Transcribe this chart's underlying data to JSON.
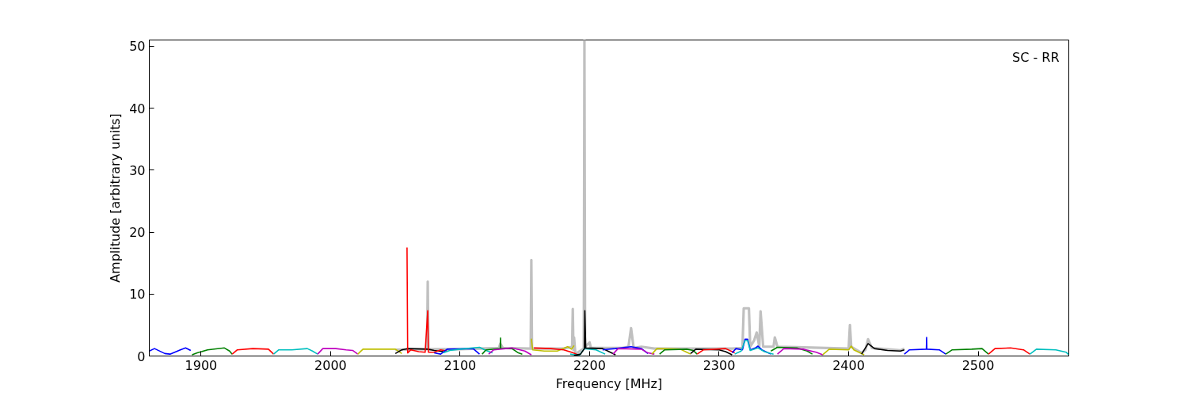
{
  "chart_data": {
    "type": "line",
    "xlabel": "Frequency [MHz]",
    "ylabel": "Amplitude [arbitrary units]",
    "annotations": [
      "SC - RR"
    ],
    "xlim": [
      1860,
      2570
    ],
    "ylim": [
      0,
      51
    ],
    "xticks": [
      1900,
      2000,
      2100,
      2200,
      2300,
      2400,
      2500
    ],
    "yticks": [
      0,
      10,
      20,
      30,
      40,
      50
    ],
    "grid": false,
    "line_style": "solid",
    "series": [
      {
        "color": "#c0c0c0",
        "x": [
          2050,
          2074.5,
          2075,
          2075.5,
          2100,
          2130,
          2131,
          2133,
          2154.5,
          2155,
          2155.5,
          2180,
          2186.5,
          2187,
          2187.5,
          2188,
          2189,
          2195.5,
          2196,
          2196.5,
          2200,
          2201,
          2225,
          2230,
          2232,
          2234,
          2240,
          2250,
          2310,
          2318,
          2319,
          2323,
          2324,
          2327,
          2329,
          2331,
          2332,
          2334,
          2342,
          2343,
          2345,
          2400,
          2401,
          2402,
          2410,
          2413,
          2415,
          2418,
          2440,
          2443
        ],
        "values": [
          1.0,
          1.1,
          12.0,
          1.1,
          1.1,
          1.3,
          2.0,
          1.3,
          1.2,
          15.5,
          1.2,
          1.2,
          1.5,
          7.6,
          1.0,
          3.0,
          0.3,
          1.2,
          51,
          1.5,
          2.2,
          1.3,
          1.3,
          1.5,
          4.5,
          1.3,
          1.5,
          1.2,
          1.2,
          1.3,
          7.7,
          7.7,
          1.5,
          2.5,
          3.8,
          1.5,
          7.2,
          1.5,
          1.5,
          3.0,
          1.5,
          1.2,
          5.0,
          1.5,
          0.5,
          1.0,
          2.7,
          1.3,
          0.9,
          1.2
        ]
      },
      {
        "color": "#0000ff",
        "x": [
          1860,
          1864,
          1872,
          1876,
          1884,
          1888,
          1892
        ],
        "values": [
          0.8,
          1.2,
          0.4,
          0.3,
          1.0,
          1.3,
          0.9
        ]
      },
      {
        "color": "#008000",
        "x": [
          1893,
          1897,
          1905,
          1918,
          1922,
          1924
        ],
        "values": [
          0.2,
          0.5,
          1.0,
          1.3,
          0.8,
          0.3
        ]
      },
      {
        "color": "#ff0000",
        "x": [
          1924,
          1928,
          1940,
          1952,
          1956
        ],
        "values": [
          0.3,
          1.0,
          1.2,
          1.1,
          0.3
        ]
      },
      {
        "color": "#00bfbf",
        "x": [
          1956,
          1960,
          1970,
          1982,
          1986,
          1990
        ],
        "values": [
          0.3,
          1.0,
          1.0,
          1.2,
          0.8,
          0.3
        ]
      },
      {
        "color": "#bf00bf",
        "x": [
          1990,
          1994,
          2004,
          2012,
          2017,
          2021
        ],
        "values": [
          0.3,
          1.2,
          1.2,
          1.0,
          0.9,
          0.3
        ]
      },
      {
        "color": "#bfbf00",
        "x": [
          2021,
          2025,
          2050,
          2055
        ],
        "values": [
          0.3,
          1.1,
          1.1,
          0.4
        ]
      },
      {
        "color": "#000000",
        "x": [
          2050,
          2055,
          2060,
          2075,
          2080,
          2087
        ],
        "values": [
          0.4,
          1.0,
          1.2,
          1.1,
          0.9,
          0.7
        ]
      },
      {
        "color": "#ff0000",
        "x": [
          2059,
          2059.5,
          2062,
          2068,
          2073,
          2075,
          2075.5,
          2080,
          2085,
          2090
        ],
        "values": [
          17.5,
          0.5,
          1.0,
          0.7,
          0.6,
          7.3,
          0.6,
          0.6,
          1.0,
          0.8
        ]
      },
      {
        "color": "#0000ff",
        "x": [
          2080,
          2085,
          2090,
          2110,
          2115
        ],
        "values": [
          0.5,
          0.3,
          1.1,
          1.2,
          0.3
        ]
      },
      {
        "color": "#00bfbf",
        "x": [
          2087,
          2092,
          2100,
          2115,
          2120,
          2125
        ],
        "values": [
          0.5,
          0.9,
          1.1,
          1.4,
          0.9,
          0.5
        ]
      },
      {
        "color": "#008000",
        "x": [
          2117,
          2120,
          2131,
          2131.2,
          2131.4,
          2140,
          2145,
          2148
        ],
        "values": [
          0.3,
          1.0,
          1.2,
          2.9,
          1.2,
          1.2,
          0.5,
          0.3
        ]
      },
      {
        "color": "#bf00bf",
        "x": [
          2122,
          2126,
          2140,
          2150,
          2155
        ],
        "values": [
          0.3,
          1.0,
          1.3,
          0.8,
          0.2
        ]
      },
      {
        "color": "#bfbf00",
        "x": [
          2155,
          2156,
          2165,
          2175,
          2183,
          2186,
          2188
        ],
        "values": [
          2.8,
          1.0,
          0.8,
          0.8,
          1.5,
          1.1,
          1.7
        ]
      },
      {
        "color": "#ff0000",
        "x": [
          2157,
          2170,
          2180,
          2186,
          2190
        ],
        "values": [
          1.3,
          1.2,
          1.0,
          0.6,
          0.3
        ]
      },
      {
        "color": "#00bfbf",
        "x": [
          2185,
          2192,
          2196,
          2205,
          2212
        ],
        "values": [
          0.3,
          0.1,
          1.2,
          1.0,
          0.3
        ]
      },
      {
        "color": "#000000",
        "x": [
          2188,
          2193,
          2196,
          2196.3,
          2197,
          2210,
          2215,
          2220
        ],
        "values": [
          0.1,
          0.3,
          1.2,
          7.3,
          1.3,
          1.2,
          0.7,
          0.2
        ]
      },
      {
        "color": "#0000ff",
        "x": [
          2210,
          2220,
          2232,
          2240,
          2245
        ],
        "values": [
          1.0,
          1.2,
          1.5,
          1.2,
          0.4
        ]
      },
      {
        "color": "#bf00bf",
        "x": [
          2218,
          2222,
          2240,
          2245,
          2250
        ],
        "values": [
          0.3,
          1.2,
          1.1,
          0.5,
          0.3
        ]
      },
      {
        "color": "#bfbf00",
        "x": [
          2248,
          2252,
          2270,
          2275,
          2278
        ],
        "values": [
          0.3,
          1.2,
          1.1,
          0.6,
          0.3
        ]
      },
      {
        "color": "#008000",
        "x": [
          2254,
          2258,
          2275,
          2280,
          2283
        ],
        "values": [
          0.3,
          1.0,
          1.1,
          0.9,
          0.3
        ]
      },
      {
        "color": "#000000",
        "x": [
          2278,
          2282,
          2300,
          2305,
          2310
        ],
        "values": [
          0.4,
          1.1,
          1.0,
          0.7,
          0.2
        ]
      },
      {
        "color": "#ff0000",
        "x": [
          2283,
          2288,
          2305,
          2312
        ],
        "values": [
          0.3,
          1.0,
          1.2,
          0.5
        ]
      },
      {
        "color": "#0000ff",
        "x": [
          2310,
          2313,
          2318,
          2320,
          2322,
          2324,
          2328,
          2330,
          2333,
          2340
        ],
        "values": [
          0.5,
          1.2,
          1.0,
          2.7,
          2.7,
          1.0,
          1.3,
          1.6,
          1.0,
          0.3
        ]
      },
      {
        "color": "#00bfbf",
        "x": [
          2312,
          2317,
          2320,
          2322,
          2324,
          2330,
          2335,
          2342
        ],
        "values": [
          0.3,
          0.8,
          2.5,
          2.5,
          0.9,
          1.3,
          0.7,
          0.3
        ]
      },
      {
        "color": "#008000",
        "x": [
          2340,
          2345,
          2360,
          2368,
          2372
        ],
        "values": [
          0.8,
          1.4,
          1.3,
          0.8,
          0.3
        ]
      },
      {
        "color": "#bf00bf",
        "x": [
          2345,
          2350,
          2365,
          2375,
          2380
        ],
        "values": [
          0.3,
          1.2,
          1.1,
          0.6,
          0.2
        ]
      },
      {
        "color": "#bfbf00",
        "x": [
          2380,
          2385,
          2400,
          2402,
          2404,
          2412
        ],
        "values": [
          0.2,
          1.1,
          1.0,
          1.6,
          1.0,
          0.2
        ]
      },
      {
        "color": "#000000",
        "x": [
          2410,
          2415,
          2420,
          2430,
          2440,
          2443
        ],
        "values": [
          0.3,
          2.0,
          1.2,
          0.9,
          0.8,
          1.0
        ]
      },
      {
        "color": "#0000ff",
        "x": [
          2443,
          2447,
          2460,
          2460.2,
          2460.4,
          2470,
          2475
        ],
        "values": [
          0.3,
          1.0,
          1.1,
          3.0,
          1.1,
          1.0,
          0.3
        ]
      },
      {
        "color": "#008000",
        "x": [
          2475,
          2480,
          2495,
          2503,
          2508
        ],
        "values": [
          0.3,
          1.0,
          1.1,
          1.2,
          0.3
        ]
      },
      {
        "color": "#ff0000",
        "x": [
          2508,
          2513,
          2525,
          2535,
          2540
        ],
        "values": [
          0.3,
          1.2,
          1.3,
          1.0,
          0.3
        ]
      },
      {
        "color": "#00bfbf",
        "x": [
          2540,
          2545,
          2560,
          2568,
          2570
        ],
        "values": [
          0.3,
          1.1,
          1.0,
          0.6,
          0.2
        ]
      }
    ]
  }
}
